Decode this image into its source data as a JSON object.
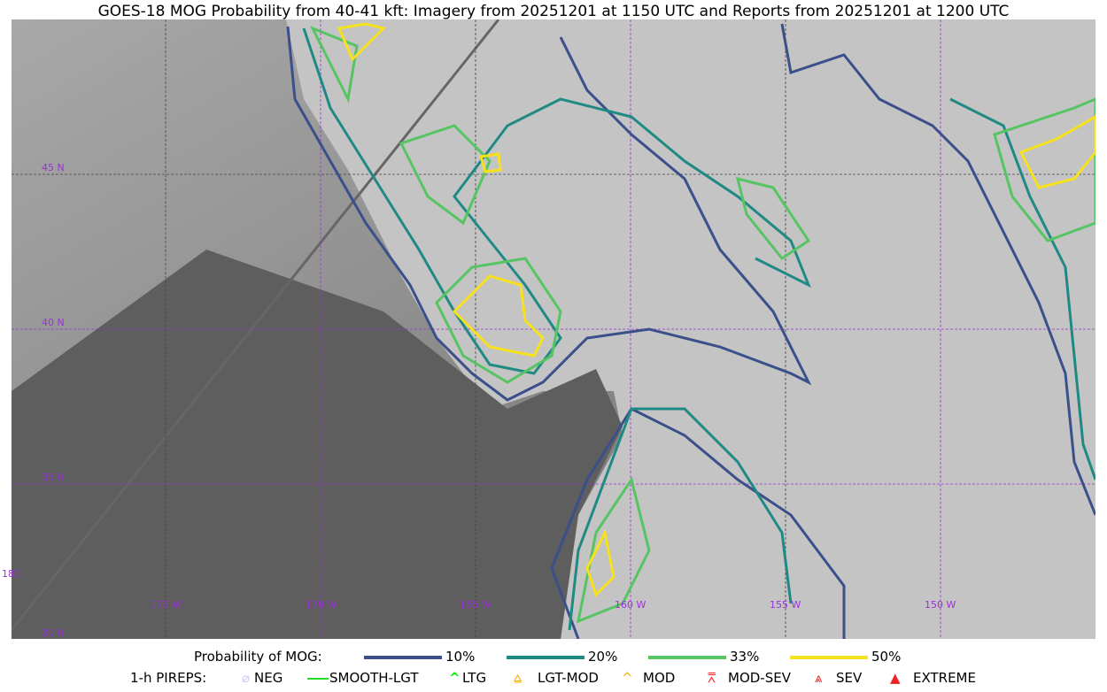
{
  "title": "GOES-18 MOG Probability from 40-41 kft: Imagery from 20251201 at 1150 UTC and Reports from 20251201 at 1200 UTC",
  "map": {
    "lat_labels": [
      "45 N",
      "40 N",
      "35 N",
      "30 N"
    ],
    "lon_labels": [
      "180",
      "175 W",
      "170 W",
      "165 W",
      "160 W",
      "155 W",
      "150 W"
    ],
    "grid_color": "#9b30d9"
  },
  "legend": {
    "prob_title": "Probability of MOG:",
    "levels": [
      {
        "label": "10%",
        "color": "#3b4f8a"
      },
      {
        "label": "20%",
        "color": "#1f8a84"
      },
      {
        "label": "33%",
        "color": "#56c462"
      },
      {
        "label": "50%",
        "color": "#f5e11c"
      }
    ],
    "pirep_title": "1-h PIREPS:",
    "pireps": [
      {
        "label": "NEG",
        "color": "#c8c8f0",
        "icon": "neg-icon"
      },
      {
        "label": "SMOOTH-LGT",
        "color": "#22dd22",
        "icon": "smooth-line-icon"
      },
      {
        "label": "LTG",
        "color": "#00ee00",
        "icon": "caret-icon"
      },
      {
        "label": "LGT-MOD",
        "color": "#f5b000",
        "icon": "caret-bar-icon"
      },
      {
        "label": "MOD",
        "color": "#f5b000",
        "icon": "caret-icon"
      },
      {
        "label": "MOD-SEV",
        "color": "#ee2222",
        "icon": "double-caret-bar-icon"
      },
      {
        "label": "SEV",
        "color": "#ee2222",
        "icon": "double-caret-icon"
      },
      {
        "label": "EXTREME",
        "color": "#ee2222",
        "icon": "filled-triangle-icon"
      }
    ]
  }
}
